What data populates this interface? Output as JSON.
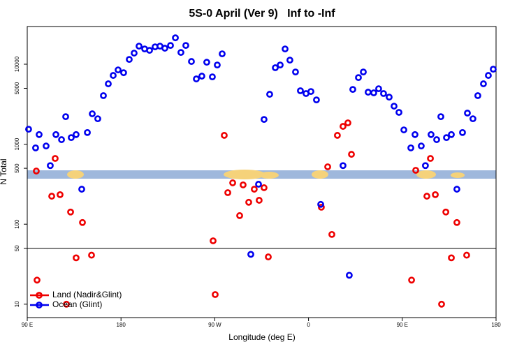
{
  "chart_data": {
    "type": "scatter",
    "title": "5S-0 April (Ver 9)   Inf to -Inf",
    "xlabel": "Longitude (deg E)",
    "ylabel": "N Total",
    "xlim": [
      90,
      540
    ],
    "xticks": [
      {
        "value": 90,
        "label": "90 E"
      },
      {
        "value": 180,
        "label": "180"
      },
      {
        "value": 270,
        "label": "90 W"
      },
      {
        "value": 360,
        "label": "0"
      },
      {
        "value": 450,
        "label": "90 E"
      },
      {
        "value": 540,
        "label": "180"
      }
    ],
    "ylim": [
      6.8,
      29600
    ],
    "yticks": [
      10,
      50,
      100,
      500,
      1000,
      5000,
      10000
    ],
    "yscale": "log",
    "reference_line": 50,
    "legend": "bottom-left",
    "series": [
      {
        "name": "Land (Nadir&Glint)",
        "color": "#ee0000",
        "x": [
          98.7,
          99.4,
          113.5,
          116.8,
          121.5,
          127.6,
          131.6,
          136.9,
          143,
          151.7,
          268.4,
          270.4,
          279.1,
          282.5,
          287.2,
          293.9,
          297.2,
          302.6,
          307.9,
          312.6,
          317.3,
          321.4,
          372.3,
          378.4,
          382.4,
          387.7,
          393.1,
          397.8,
          401.2,
          458.9,
          462.9,
          473.6,
          477,
          481.7,
          487.7,
          491.8,
          497.1,
          502.4,
          511.8
        ],
        "values": [
          462,
          20,
          224,
          664,
          234,
          10,
          142,
          38,
          105,
          41,
          62,
          13.2,
          1290,
          248,
          329,
          128,
          310,
          188,
          274,
          199,
          286,
          39,
          163,
          522,
          74.5,
          1290,
          1670,
          1850,
          748,
          20,
          472,
          224,
          664,
          234,
          10,
          142,
          38,
          105,
          41
        ]
      },
      {
        "name": "Ocean (Glint)",
        "color": "#0000ee",
        "x": [
          91.3,
          98,
          101.4,
          108.1,
          112.1,
          117.5,
          122.9,
          126.9,
          132.2,
          136.9,
          142.3,
          147.7,
          152.4,
          157.7,
          163.1,
          167.8,
          172.5,
          177.2,
          182.5,
          187.9,
          192.6,
          197.3,
          202.7,
          207.4,
          212.7,
          217.4,
          222.1,
          227.5,
          232.2,
          237.5,
          242.2,
          247.6,
          252.3,
          257.6,
          262.3,
          267.7,
          272.4,
          277.1,
          312,
          317.3,
          322.7,
          328.1,
          332.8,
          337.5,
          342.1,
          347.5,
          352.2,
          357.6,
          362.3,
          367.6,
          371.7,
          393.1,
          402.5,
          407.9,
          412.6,
          417.2,
          422.6,
          427.3,
          432,
          437.4,
          442.1,
          446.8,
          451.5,
          458.2,
          462.2,
          468.2,
          472.2,
          477.6,
          483,
          487,
          492.4,
          497.1,
          502.4,
          507.8,
          512.5,
          517.8,
          522.5,
          527.9,
          532.6,
          537.3,
          304.6,
          399.1
        ],
        "values": [
          1540,
          900,
          1320,
          950,
          540,
          1320,
          1140,
          2210,
          1210,
          1320,
          274,
          1400,
          2400,
          2080,
          4050,
          5690,
          7240,
          8490,
          7830,
          11480,
          13770,
          16830,
          15520,
          14920,
          16490,
          16830,
          15850,
          17160,
          21380,
          14030,
          17160,
          10820,
          6550,
          7100,
          10590,
          6950,
          9780,
          13490,
          316,
          2040,
          4210,
          9040,
          9780,
          15520,
          11250,
          8000,
          4660,
          4300,
          4560,
          3580,
          177,
          540,
          4840,
          6810,
          8000,
          4470,
          4390,
          4940,
          4300,
          3880,
          2990,
          2500,
          1510,
          900,
          1320,
          950,
          540,
          1320,
          1140,
          2210,
          1210,
          1320,
          274,
          1400,
          2450,
          2080,
          4050,
          5690,
          7240,
          8670,
          42,
          23
        ]
      }
    ]
  }
}
